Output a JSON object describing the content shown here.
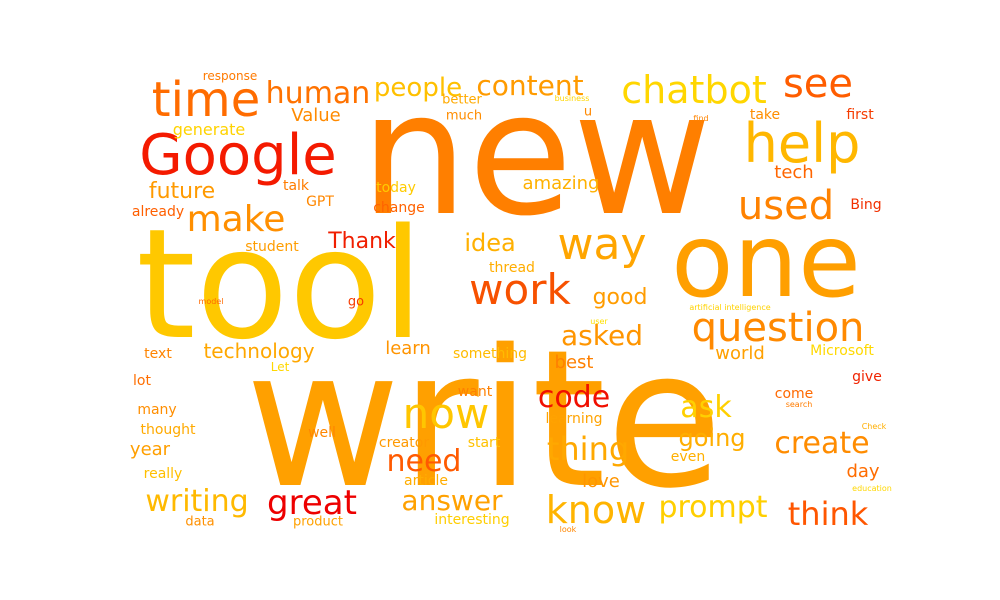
{
  "words": [
    {
      "text": "new",
      "color": "#ff7f00"
    },
    {
      "text": "write",
      "color": "#ffa000"
    },
    {
      "text": "tool",
      "color": "#ffc800"
    },
    {
      "text": "one",
      "color": "#ff9f00"
    },
    {
      "text": "Google",
      "color": "#f41a00"
    },
    {
      "text": "time",
      "color": "#ff6c00"
    },
    {
      "text": "help",
      "color": "#ffb700"
    },
    {
      "text": "see",
      "color": "#ff5d00"
    },
    {
      "text": "chatbot",
      "color": "#ffd600"
    },
    {
      "text": "question",
      "color": "#ff8900"
    },
    {
      "text": "way",
      "color": "#ffa500"
    },
    {
      "text": "work",
      "color": "#f75100"
    },
    {
      "text": "now",
      "color": "#ffc600"
    },
    {
      "text": "used",
      "color": "#ff8200"
    },
    {
      "text": "make",
      "color": "#ff8f00"
    },
    {
      "text": "great",
      "color": "#ed0000"
    },
    {
      "text": "know",
      "color": "#ffb400"
    },
    {
      "text": "think",
      "color": "#ff5600"
    },
    {
      "text": "writing",
      "color": "#ffb900"
    },
    {
      "text": "content",
      "color": "#ff9b00"
    },
    {
      "text": "human",
      "color": "#ff7200"
    },
    {
      "text": "people",
      "color": "#ffc000"
    },
    {
      "text": "code",
      "color": "#f00f00"
    },
    {
      "text": "answer",
      "color": "#ffa100"
    },
    {
      "text": "need",
      "color": "#ff5a00"
    },
    {
      "text": "thing",
      "color": "#ffa800"
    },
    {
      "text": "prompt",
      "color": "#ffcf00"
    },
    {
      "text": "create",
      "color": "#ff8c00"
    },
    {
      "text": "ask",
      "color": "#ffd000"
    },
    {
      "text": "going",
      "color": "#ffae00"
    },
    {
      "text": "asked",
      "color": "#ff9500"
    },
    {
      "text": "good",
      "color": "#ff9c00"
    },
    {
      "text": "idea",
      "color": "#ffb000"
    },
    {
      "text": "Thank",
      "color": "#f01e00"
    },
    {
      "text": "future",
      "color": "#ff9a00"
    },
    {
      "text": "technology",
      "color": "#ffa700"
    },
    {
      "text": "learn",
      "color": "#ff9400"
    },
    {
      "text": "best",
      "color": "#ff8000"
    },
    {
      "text": "world",
      "color": "#ffa000"
    },
    {
      "text": "amazing",
      "color": "#ffb100"
    },
    {
      "text": "tech",
      "color": "#ff6500"
    },
    {
      "text": "Value",
      "color": "#ff8a00"
    },
    {
      "text": "generate",
      "color": "#ffd300"
    },
    {
      "text": "year",
      "color": "#ff9f00"
    },
    {
      "text": "love",
      "color": "#ff9500"
    },
    {
      "text": "day",
      "color": "#ff6c00"
    },
    {
      "text": "Bing",
      "color": "#f13000"
    },
    {
      "text": "first",
      "color": "#f53c00"
    },
    {
      "text": "take",
      "color": "#ff8e00"
    },
    {
      "text": "give",
      "color": "#f02300"
    },
    {
      "text": "Microsoft",
      "color": "#ffd900"
    },
    {
      "text": "come",
      "color": "#ff6900"
    },
    {
      "text": "even",
      "color": "#ffb000"
    },
    {
      "text": "interesting",
      "color": "#ffce00"
    },
    {
      "text": "article",
      "color": "#ffad00"
    },
    {
      "text": "creator",
      "color": "#ff9900"
    },
    {
      "text": "start",
      "color": "#ffc100"
    },
    {
      "text": "learning",
      "color": "#ffa300"
    },
    {
      "text": "something",
      "color": "#ffbb00"
    },
    {
      "text": "want",
      "color": "#ff8000"
    },
    {
      "text": "thread",
      "color": "#ffad00"
    },
    {
      "text": "today",
      "color": "#ffcb00"
    },
    {
      "text": "change",
      "color": "#ff6200"
    },
    {
      "text": "talk",
      "color": "#ff7c00"
    },
    {
      "text": "GPT",
      "color": "#ff8700"
    },
    {
      "text": "student",
      "color": "#ff9d00"
    },
    {
      "text": "already",
      "color": "#ff5f00"
    },
    {
      "text": "response",
      "color": "#ff7a00"
    },
    {
      "text": "better",
      "color": "#ffaa00"
    },
    {
      "text": "much",
      "color": "#ff8d00"
    },
    {
      "text": "u",
      "color": "#ff8800"
    },
    {
      "text": "business",
      "color": "#ffd600"
    },
    {
      "text": "find",
      "color": "#ff8400"
    },
    {
      "text": "text",
      "color": "#ff8400"
    },
    {
      "text": "lot",
      "color": "#ff6e00"
    },
    {
      "text": "many",
      "color": "#ff8e00"
    },
    {
      "text": "thought",
      "color": "#ffaa00"
    },
    {
      "text": "really",
      "color": "#ffbf00"
    },
    {
      "text": "well",
      "color": "#ff8600"
    },
    {
      "text": "data",
      "color": "#ff9000"
    },
    {
      "text": "product",
      "color": "#ffa100"
    },
    {
      "text": "look",
      "color": "#ff8600"
    },
    {
      "text": "go",
      "color": "#f63c00"
    },
    {
      "text": "Let",
      "color": "#ffd700"
    },
    {
      "text": "user",
      "color": "#ffe000"
    },
    {
      "text": "model",
      "color": "#ff6a00"
    },
    {
      "text": "artificial intelligence",
      "color": "#ffd200"
    },
    {
      "text": "search",
      "color": "#ff7c00"
    },
    {
      "text": "Check",
      "color": "#ffae00"
    },
    {
      "text": "education",
      "color": "#ffd700"
    }
  ]
}
